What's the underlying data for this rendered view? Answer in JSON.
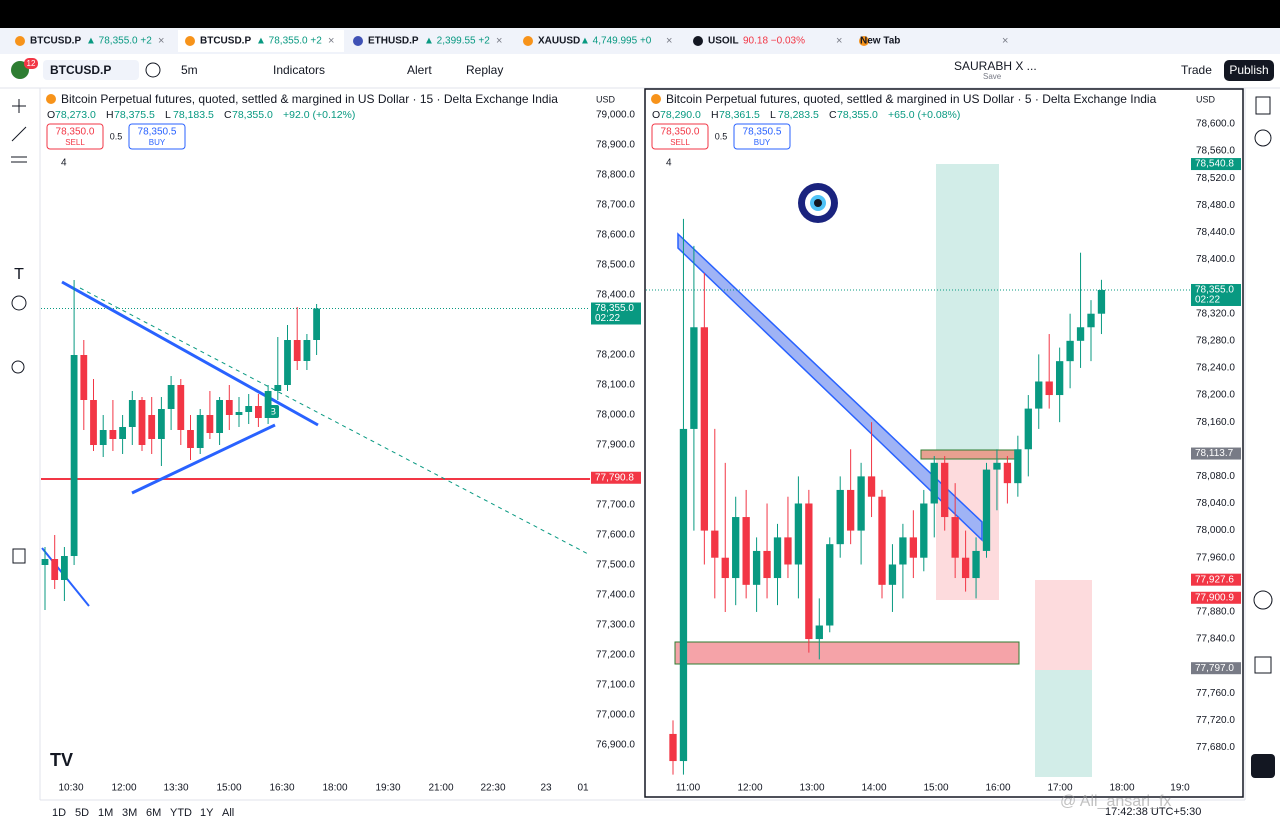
{
  "tabs": [
    {
      "symbol": "BTCUSD.P",
      "quote": "▲ 78,355.0 +2"
    },
    {
      "symbol": "BTCUSD.P",
      "quote": "▲ 78,355.0 +2"
    },
    {
      "symbol": "ETHUSD.P",
      "quote": "▲ 2,399.55 +2"
    },
    {
      "symbol": "XAUUSD",
      "quote": "▲ 4,749.995 +0"
    },
    {
      "symbol": "USOIL",
      "quote": "90.18 −0.03%"
    },
    {
      "symbol": "New Tab",
      "quote": ""
    }
  ],
  "toolbar": {
    "badge": "12",
    "symbol": "BTCUSD.P",
    "interval": "5m",
    "indicators": "Indicators",
    "alert": "Alert",
    "replay": "Replay",
    "layout": "SAURABH X ...",
    "save": "Save",
    "trade": "Trade",
    "publish": "Publish"
  },
  "left_chart": {
    "title": "Bitcoin Perpetual futures, quoted, settled & margined in US Dollar · 15 · Delta Exchange India",
    "ohlc": [
      [
        "O",
        "78,273.0"
      ],
      [
        "H",
        "78,375.5"
      ],
      [
        "L",
        "78,183.5"
      ],
      [
        "C",
        "78,355.0"
      ]
    ],
    "change": "+92.0 (+0.12%)",
    "sell": {
      "price": "78,350.0",
      "label": "SELL"
    },
    "spread": "0.5",
    "buy": {
      "price": "78,350.5",
      "label": "BUY"
    },
    "indicators": "4",
    "currency": "USD",
    "marker": "B",
    "ylim": [
      76790,
      79090
    ],
    "yticks": [
      {
        "value": 79000,
        "label": "79,000.0"
      },
      {
        "value": 78900,
        "label": "78,900.0"
      },
      {
        "value": 78800,
        "label": "78,800.0"
      },
      {
        "value": 78700,
        "label": "78,700.0"
      },
      {
        "value": 78600,
        "label": "78,600.0"
      },
      {
        "value": 78500,
        "label": "78,500.0"
      },
      {
        "value": 78400,
        "label": "78,400.0"
      },
      {
        "value": 78200,
        "label": "78,200.0"
      },
      {
        "value": 78100,
        "label": "78,100.0"
      },
      {
        "value": 78000,
        "label": "78,000.0"
      },
      {
        "value": 77900,
        "label": "77,900.0"
      },
      {
        "value": 77700,
        "label": "77,700.0"
      },
      {
        "value": 77600,
        "label": "77,600.0"
      },
      {
        "value": 77500,
        "label": "77,500.0"
      },
      {
        "value": 77400,
        "label": "77,400.0"
      },
      {
        "value": 77300,
        "label": "77,300.0"
      },
      {
        "value": 77200,
        "label": "77,200.0"
      },
      {
        "value": 77100,
        "label": "77,100.0"
      },
      {
        "value": 77000,
        "label": "77,000.0"
      },
      {
        "value": 76900,
        "label": "76,900.0"
      }
    ],
    "xlabels": [
      "10:30",
      "12:00",
      "13:30",
      "15:00",
      "16:30",
      "18:00",
      "19:30",
      "21:00",
      "22:30",
      "23",
      "01"
    ],
    "price_labels": [
      {
        "value": 78355,
        "label": "78,355.0",
        "sub": "02:22",
        "color": "#089981"
      },
      {
        "value": 77790.8,
        "label": "77,790.8",
        "color": "#f23645"
      }
    ],
    "candles": [
      [
        77500,
        77560,
        77350,
        77520
      ],
      [
        77520,
        77600,
        77420,
        77450
      ],
      [
        77450,
        77560,
        77380,
        77530
      ],
      [
        77530,
        78450,
        77500,
        78200
      ],
      [
        78200,
        78250,
        77950,
        78050
      ],
      [
        78050,
        78120,
        77880,
        77900
      ],
      [
        77900,
        78000,
        77860,
        77950
      ],
      [
        77950,
        78050,
        77880,
        77920
      ],
      [
        77920,
        78000,
        77870,
        77960
      ],
      [
        77960,
        78080,
        77900,
        78050
      ],
      [
        78050,
        78060,
        77880,
        77900
      ],
      [
        78000,
        78060,
        77870,
        77920
      ],
      [
        77920,
        78060,
        77830,
        78020
      ],
      [
        78020,
        78130,
        77950,
        78100
      ],
      [
        78100,
        78120,
        77900,
        77950
      ],
      [
        77950,
        78000,
        77850,
        77890
      ],
      [
        77890,
        78020,
        77870,
        78000
      ],
      [
        78000,
        78080,
        77920,
        77940
      ],
      [
        77940,
        78060,
        77900,
        78050
      ],
      [
        78050,
        78100,
        77950,
        78000
      ],
      [
        78000,
        78060,
        77960,
        78010
      ],
      [
        78010,
        78070,
        77970,
        78030
      ],
      [
        78030,
        78070,
        77960,
        77990
      ],
      [
        77990,
        78100,
        77970,
        78080
      ],
      [
        78080,
        78260,
        78050,
        78100
      ],
      [
        78100,
        78300,
        78080,
        78250
      ],
      [
        78250,
        78360,
        78150,
        78180
      ],
      [
        78180,
        78270,
        78150,
        78250
      ],
      [
        78250,
        78370,
        78200,
        78355
      ]
    ]
  },
  "right_chart": {
    "title": "Bitcoin Perpetual futures, quoted, settled & margined in US Dollar · 5 · Delta Exchange India",
    "ohlc": [
      [
        "O",
        "78,290.0"
      ],
      [
        "H",
        "78,361.5"
      ],
      [
        "L",
        "78,283.5"
      ],
      [
        "C",
        "78,355.0"
      ]
    ],
    "change": "+65.0 (+0.08%)",
    "sell": {
      "price": "78,350.0",
      "label": "SELL"
    },
    "spread": "0.5",
    "buy": {
      "price": "78,350.5",
      "label": "BUY"
    },
    "indicators": "4",
    "currency": "USD",
    "ylim": [
      77635,
      78653
    ],
    "yticks": [
      {
        "value": 78600,
        "label": "78,600.0"
      },
      {
        "value": 78560,
        "label": "78,560.0"
      },
      {
        "value": 78520,
        "label": "78,520.0"
      },
      {
        "value": 78480,
        "label": "78,480.0"
      },
      {
        "value": 78440,
        "label": "78,440.0"
      },
      {
        "value": 78400,
        "label": "78,400.0"
      },
      {
        "value": 78320,
        "label": "78,320.0"
      },
      {
        "value": 78280,
        "label": "78,280.0"
      },
      {
        "value": 78240,
        "label": "78,240.0"
      },
      {
        "value": 78200,
        "label": "78,200.0"
      },
      {
        "value": 78160,
        "label": "78,160.0"
      },
      {
        "value": 78080,
        "label": "78,080.0"
      },
      {
        "value": 78040,
        "label": "78,040.0"
      },
      {
        "value": 78000,
        "label": "78,000.0"
      },
      {
        "value": 77960,
        "label": "77,960.0"
      },
      {
        "value": 77880,
        "label": "77,880.0"
      },
      {
        "value": 77840,
        "label": "77,840.0"
      },
      {
        "value": 77760,
        "label": "77,760.0"
      },
      {
        "value": 77720,
        "label": "77,720.0"
      },
      {
        "value": 77680,
        "label": "77,680.0"
      }
    ],
    "xlabels": [
      "11:00",
      "12:00",
      "13:00",
      "14:00",
      "15:00",
      "16:00",
      "17:00",
      "18:00",
      "19:0"
    ],
    "price_labels": [
      {
        "value": 78540.8,
        "label": "78,540.8",
        "color": "#089981"
      },
      {
        "value": 78355,
        "label": "78,355.0",
        "sub": "02:22",
        "color": "#089981"
      },
      {
        "value": 78113.7,
        "label": "78,113.7",
        "color": "#787b86"
      },
      {
        "value": 77927.6,
        "label": "77,927.6",
        "color": "#f23645"
      },
      {
        "value": 77900.9,
        "label": "77,900.9",
        "color": "#f23645"
      },
      {
        "value": 77797,
        "label": "77,797.0",
        "color": "#787b86"
      }
    ],
    "candles": [
      [
        77700,
        77720,
        77640,
        77660
      ],
      [
        77660,
        78460,
        77640,
        78150
      ],
      [
        78150,
        78420,
        78000,
        78300
      ],
      [
        78300,
        78380,
        77950,
        78000
      ],
      [
        78000,
        78150,
        77900,
        77960
      ],
      [
        77960,
        78100,
        77880,
        77930
      ],
      [
        77930,
        78050,
        77890,
        78020
      ],
      [
        78020,
        78060,
        77900,
        77920
      ],
      [
        77920,
        77990,
        77880,
        77970
      ],
      [
        77970,
        78040,
        77900,
        77930
      ],
      [
        77930,
        78010,
        77890,
        77990
      ],
      [
        77990,
        78050,
        77930,
        77950
      ],
      [
        77950,
        78080,
        77900,
        78040
      ],
      [
        78040,
        78060,
        77820,
        77840
      ],
      [
        77840,
        77900,
        77810,
        77860
      ],
      [
        77860,
        77990,
        77850,
        77980
      ],
      [
        77980,
        78080,
        77960,
        78060
      ],
      [
        78060,
        78120,
        77980,
        78000
      ],
      [
        78000,
        78100,
        77950,
        78080
      ],
      [
        78080,
        78160,
        78020,
        78050
      ],
      [
        78050,
        78060,
        77900,
        77920
      ],
      [
        77920,
        77980,
        77880,
        77950
      ],
      [
        77950,
        78010,
        77900,
        77990
      ],
      [
        77990,
        78030,
        77930,
        77960
      ],
      [
        77960,
        78060,
        77940,
        78040
      ],
      [
        78040,
        78110,
        77990,
        78100
      ],
      [
        78100,
        78110,
        78000,
        78020
      ],
      [
        78020,
        78070,
        77930,
        77960
      ],
      [
        77960,
        78000,
        77910,
        77930
      ],
      [
        77930,
        77990,
        77900,
        77970
      ],
      [
        77970,
        78100,
        77960,
        78090
      ],
      [
        78090,
        78120,
        78030,
        78100
      ],
      [
        78100,
        78110,
        78040,
        78070
      ],
      [
        78070,
        78140,
        78050,
        78120
      ],
      [
        78120,
        78200,
        78080,
        78180
      ],
      [
        78180,
        78260,
        78150,
        78220
      ],
      [
        78220,
        78290,
        78180,
        78200
      ],
      [
        78200,
        78270,
        78160,
        78250
      ],
      [
        78250,
        78320,
        78210,
        78280
      ],
      [
        78280,
        78410,
        78240,
        78300
      ],
      [
        78300,
        78340,
        78250,
        78320
      ],
      [
        78320,
        78370,
        78290,
        78355
      ]
    ]
  },
  "bottom": {
    "ranges": [
      "1D",
      "5D",
      "1M",
      "3M",
      "6M",
      "YTD",
      "1Y",
      "All"
    ],
    "time": "17:42:38 UTC+5:30",
    "watermark": "@ Ali_ansari_fx"
  }
}
